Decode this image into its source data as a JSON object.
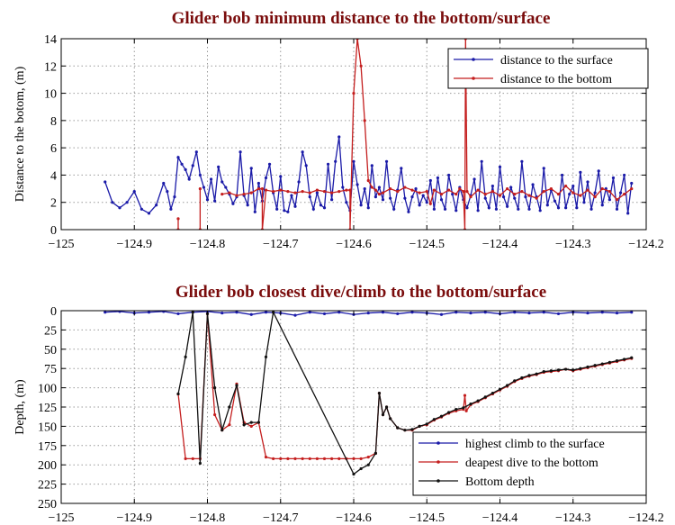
{
  "chart_data": [
    {
      "type": "line",
      "title": "Glider bob minimum distance to the bottom/surface",
      "xlabel": "",
      "ylabel": "Distance to the botom, (m)",
      "xlim": [
        -125,
        -124.2
      ],
      "ylim": [
        0,
        14
      ],
      "xticks": [
        -125,
        -124.9,
        -124.8,
        -124.7,
        -124.6,
        -124.5,
        -124.4,
        -124.3,
        -124.2
      ],
      "xtick_labels": [
        "−125",
        "−124.9",
        "−124.8",
        "−124.7",
        "−124.6",
        "−124.5",
        "−124.4",
        "−124.3",
        "−124.2"
      ],
      "yticks": [
        0,
        2,
        4,
        6,
        8,
        10,
        12,
        14
      ],
      "ytick_labels": [
        "0",
        "2",
        "4",
        "6",
        "8",
        "10",
        "12",
        "14"
      ],
      "grid": true,
      "legend_position": "top-right",
      "series": [
        {
          "name": "distance to the surface",
          "color": "#1a1aa8",
          "x": [
            -124.94,
            -124.93,
            -124.92,
            -124.91,
            -124.9,
            -124.89,
            -124.88,
            -124.87,
            -124.86,
            -124.855,
            -124.85,
            -124.845,
            -124.84,
            -124.835,
            -124.83,
            -124.825,
            -124.82,
            -124.815,
            -124.81,
            -124.805,
            -124.8,
            -124.795,
            -124.79,
            -124.785,
            -124.78,
            -124.775,
            -124.77,
            -124.765,
            -124.76,
            -124.755,
            -124.75,
            -124.745,
            -124.74,
            -124.735,
            -124.73,
            -124.725,
            -124.72,
            -124.715,
            -124.71,
            -124.705,
            -124.7,
            -124.695,
            -124.69,
            -124.685,
            -124.68,
            -124.675,
            -124.67,
            -124.665,
            -124.66,
            -124.655,
            -124.65,
            -124.645,
            -124.64,
            -124.635,
            -124.63,
            -124.625,
            -124.62,
            -124.615,
            -124.61,
            -124.605,
            -124.6,
            -124.595,
            -124.59,
            -124.585,
            -124.58,
            -124.575,
            -124.57,
            -124.565,
            -124.56,
            -124.555,
            -124.55,
            -124.545,
            -124.54,
            -124.535,
            -124.53,
            -124.525,
            -124.52,
            -124.515,
            -124.51,
            -124.505,
            -124.5,
            -124.495,
            -124.49,
            -124.485,
            -124.48,
            -124.475,
            -124.47,
            -124.465,
            -124.46,
            -124.455,
            -124.45,
            -124.445,
            -124.44,
            -124.435,
            -124.43,
            -124.425,
            -124.42,
            -124.415,
            -124.41,
            -124.405,
            -124.4,
            -124.395,
            -124.39,
            -124.385,
            -124.38,
            -124.375,
            -124.37,
            -124.365,
            -124.36,
            -124.355,
            -124.35,
            -124.345,
            -124.34,
            -124.335,
            -124.33,
            -124.325,
            -124.32,
            -124.315,
            -124.31,
            -124.305,
            -124.3,
            -124.295,
            -124.29,
            -124.285,
            -124.28,
            -124.275,
            -124.27,
            -124.265,
            -124.26,
            -124.255,
            -124.25,
            -124.245,
            -124.24,
            -124.235,
            -124.23,
            -124.225,
            -124.22
          ],
          "y": [
            3.5,
            2,
            1.6,
            2,
            2.8,
            1.5,
            1.2,
            1.8,
            3.4,
            2.8,
            1.5,
            2.4,
            5.3,
            4.8,
            4.4,
            3.7,
            4.7,
            5.7,
            4.0,
            3.1,
            2.2,
            3.7,
            2.1,
            4.6,
            3.5,
            3.1,
            2.6,
            1.9,
            2.4,
            5.7,
            2.5,
            1.8,
            4.5,
            1.3,
            3.4,
            2.1,
            3.8,
            4.8,
            2.7,
            1.5,
            3.9,
            1.4,
            1.3,
            2.5,
            1.7,
            3.5,
            5.7,
            4.7,
            2.4,
            1.5,
            2.7,
            1.8,
            1.6,
            4.8,
            2.2,
            5.0,
            6.8,
            3.1,
            2.0,
            1.4,
            5.0,
            3.3,
            1.8,
            3.0,
            1.6,
            4.7,
            2.4,
            3.1,
            2.2,
            5.0,
            2.3,
            1.5,
            2.9,
            4.5,
            2.3,
            1.3,
            2.4,
            3.0,
            1.8,
            2.5,
            2.0,
            3.6,
            1.5,
            3.8,
            2.2,
            1.5,
            4.0,
            2.6,
            1.4,
            3.1,
            2.2,
            1.6,
            2.5,
            3.7,
            1.4,
            5.0,
            2.3,
            1.6,
            3.2,
            1.5,
            4.6,
            2.4,
            1.7,
            3.1,
            2.3,
            1.5,
            5.0,
            2.4,
            1.5,
            3.3,
            2.4,
            1.4,
            4.5,
            1.8,
            2.9,
            2.1,
            1.6,
            4.0,
            1.6,
            2.6,
            3.2,
            1.6,
            4.2,
            2.0,
            3.5,
            1.5,
            2.7,
            4.3,
            1.8,
            3.0,
            2.2,
            3.8,
            1.5,
            2.7,
            4.0,
            1.2,
            3.4
          ]
        },
        {
          "name": "distance to the bottom",
          "color": "#c41e1e",
          "x": [
            -124.84,
            -124.84,
            null,
            -124.81,
            -124.81,
            null,
            -124.78,
            -124.77,
            -124.76,
            -124.75,
            -124.74,
            -124.73,
            -124.725,
            -124.725,
            -124.72,
            -124.71,
            -124.7,
            -124.69,
            -124.68,
            -124.67,
            -124.66,
            -124.65,
            -124.64,
            -124.63,
            -124.62,
            -124.61,
            -124.605,
            -124.605,
            -124.6,
            -124.595,
            -124.59,
            -124.585,
            -124.58,
            -124.575,
            -124.57,
            -124.565,
            -124.56,
            -124.55,
            -124.54,
            -124.53,
            -124.52,
            -124.51,
            -124.5,
            -124.495,
            -124.49,
            -124.48,
            -124.47,
            -124.46,
            -124.455,
            -124.45,
            -124.448,
            -124.447,
            -124.445,
            -124.44,
            -124.43,
            -124.42,
            -124.41,
            -124.4,
            -124.39,
            -124.38,
            -124.37,
            -124.36,
            -124.35,
            -124.34,
            -124.33,
            -124.32,
            -124.31,
            -124.3,
            -124.29,
            -124.28,
            -124.27,
            -124.26,
            -124.25,
            -124.24,
            -124.23,
            -124.22
          ],
          "y": [
            0.8,
            0,
            null,
            3.0,
            0,
            null,
            2.6,
            2.7,
            2.5,
            2.6,
            2.7,
            3.0,
            3.0,
            0,
            2.9,
            2.8,
            2.9,
            2.8,
            2.7,
            2.8,
            2.7,
            2.9,
            2.8,
            2.7,
            2.8,
            2.9,
            2.9,
            0,
            10,
            14,
            12,
            8,
            3.6,
            3.1,
            2.9,
            2.6,
            2.7,
            3.0,
            2.8,
            3.1,
            2.9,
            2.7,
            2.8,
            1.9,
            2.9,
            2.6,
            2.9,
            2.6,
            3.0,
            2.8,
            0,
            14,
            2.8,
            2.4,
            2.9,
            2.6,
            2.8,
            2.5,
            3.0,
            2.6,
            2.8,
            2.5,
            2.3,
            2.8,
            3.0,
            2.6,
            3.2,
            2.7,
            2.5,
            2.9,
            2.4,
            3.0,
            2.8,
            2.2,
            2.6,
            3.0
          ]
        }
      ]
    },
    {
      "type": "line",
      "title": "Glider bob closest dive/climb to the bottom/surface",
      "xlabel": "",
      "ylabel": "Depth, (m)",
      "xlim": [
        -125,
        -124.2
      ],
      "ylim": [
        250,
        0
      ],
      "y_axis_inverted": true,
      "xticks": [
        -125,
        -124.9,
        -124.8,
        -124.7,
        -124.6,
        -124.5,
        -124.4,
        -124.3,
        -124.2
      ],
      "xtick_labels": [
        "−125",
        "−124.9",
        "−124.8",
        "−124.7",
        "−124.6",
        "−124.5",
        "−124.4",
        "−124.3",
        "−124.2"
      ],
      "yticks": [
        0,
        25,
        50,
        75,
        100,
        125,
        150,
        175,
        200,
        225,
        250
      ],
      "ytick_labels": [
        "0",
        "25",
        "50",
        "75",
        "100",
        "125",
        "150",
        "175",
        "200",
        "225",
        "250"
      ],
      "grid": true,
      "legend_position": "bottom-right",
      "series": [
        {
          "name": "highest climb to the surface",
          "color": "#1a1aa8",
          "x": [
            -124.94,
            -124.92,
            -124.9,
            -124.88,
            -124.86,
            -124.84,
            -124.82,
            -124.8,
            -124.78,
            -124.76,
            -124.74,
            -124.72,
            -124.7,
            -124.68,
            -124.66,
            -124.64,
            -124.62,
            -124.6,
            -124.58,
            -124.56,
            -124.54,
            -124.52,
            -124.5,
            -124.48,
            -124.46,
            -124.44,
            -124.42,
            -124.4,
            -124.38,
            -124.36,
            -124.34,
            -124.32,
            -124.3,
            -124.28,
            -124.26,
            -124.24,
            -124.22
          ],
          "y": [
            2,
            1,
            3,
            2,
            1,
            4,
            2,
            1,
            3,
            2,
            5,
            2,
            3,
            6,
            2,
            4,
            2,
            5,
            3,
            2,
            4,
            2,
            3,
            5,
            2,
            3,
            2,
            4,
            2,
            3,
            2,
            4,
            2,
            3,
            2,
            3,
            2
          ]
        },
        {
          "name": "deapest dive to the bottom",
          "color": "#c41e1e",
          "x": [
            -124.84,
            -124.83,
            -124.82,
            -124.81,
            -124.8,
            -124.79,
            -124.78,
            -124.77,
            -124.76,
            -124.75,
            -124.74,
            -124.73,
            -124.72,
            -124.71,
            -124.7,
            -124.69,
            -124.68,
            -124.67,
            -124.66,
            -124.65,
            -124.64,
            -124.63,
            -124.62,
            -124.61,
            -124.6,
            -124.59,
            -124.58,
            -124.57,
            -124.565,
            -124.56,
            -124.555,
            -124.55,
            -124.54,
            -124.53,
            -124.52,
            -124.51,
            -124.5,
            -124.49,
            -124.48,
            -124.47,
            -124.46,
            -124.45,
            -124.448,
            -124.446,
            -124.44,
            -124.43,
            -124.42,
            -124.41,
            -124.4,
            -124.39,
            -124.38,
            -124.37,
            -124.36,
            -124.35,
            -124.34,
            -124.33,
            -124.32,
            -124.31,
            -124.3,
            -124.29,
            -124.28,
            -124.27,
            -124.26,
            -124.25,
            -124.24,
            -124.23,
            -124.22
          ],
          "y": [
            108,
            192,
            192,
            192,
            4,
            135,
            155,
            148,
            95,
            145,
            150,
            145,
            190,
            192,
            192,
            192,
            192,
            192,
            192,
            192,
            192,
            192,
            192,
            192,
            192,
            192,
            190,
            185,
            107,
            135,
            125,
            140,
            152,
            155,
            155,
            150,
            148,
            142,
            138,
            133,
            130,
            128,
            110,
            130,
            122,
            118,
            113,
            108,
            103,
            98,
            92,
            88,
            85,
            83,
            80,
            79,
            78,
            76,
            78,
            76,
            74,
            72,
            70,
            68,
            66,
            64,
            62
          ]
        },
        {
          "name": "Bottom depth",
          "color": "#111111",
          "x": [
            -124.84,
            -124.83,
            -124.82,
            -124.81,
            -124.8,
            -124.79,
            -124.78,
            -124.77,
            -124.76,
            -124.75,
            -124.74,
            -124.73,
            -124.72,
            -124.71,
            -124.6,
            -124.59,
            -124.58,
            -124.57,
            -124.565,
            -124.56,
            -124.555,
            -124.55,
            -124.54,
            -124.53,
            -124.52,
            -124.51,
            -124.5,
            -124.49,
            -124.48,
            -124.47,
            -124.46,
            -124.45,
            -124.44,
            -124.43,
            -124.42,
            -124.41,
            -124.4,
            -124.39,
            -124.38,
            -124.37,
            -124.36,
            -124.35,
            -124.34,
            -124.33,
            -124.32,
            -124.31,
            -124.3,
            -124.29,
            -124.28,
            -124.27,
            -124.26,
            -124.25,
            -124.24,
            -124.23,
            -124.22
          ],
          "y": [
            108,
            60,
            2,
            198,
            4,
            100,
            155,
            125,
            97,
            148,
            145,
            145,
            60,
            2,
            212,
            205,
            200,
            185,
            107,
            135,
            125,
            140,
            152,
            155,
            154,
            150,
            147,
            141,
            137,
            132,
            128,
            126,
            121,
            117,
            112,
            107,
            102,
            97,
            91,
            87,
            84,
            82,
            79,
            78,
            77,
            76,
            77,
            75,
            73,
            71,
            69,
            67,
            65,
            63,
            61
          ]
        }
      ]
    }
  ]
}
